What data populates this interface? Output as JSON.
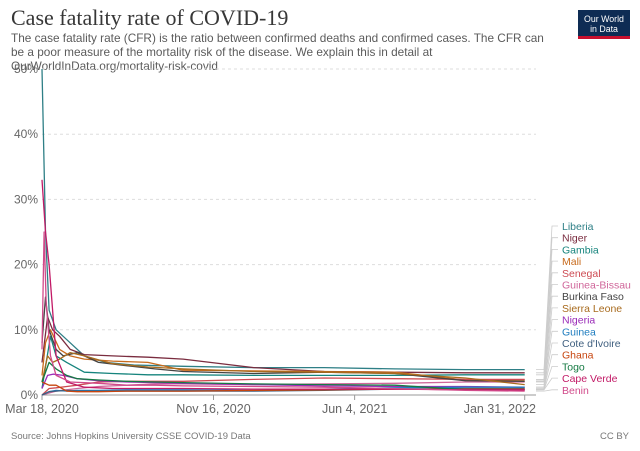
{
  "header": {
    "title": "Case fatality rate of COVID-19",
    "subtitle": "The case fatality rate (CFR) is the ratio between confirmed deaths and confirmed cases. The CFR can be a poor measure of the mortality risk of the disease. We explain this in detail at OurWorldInData.org/mortality-risk-covid",
    "logo_line1": "Our World",
    "logo_line2": "in Data"
  },
  "footer": {
    "source": "Source: Johns Hopkins University CSSE COVID-19 Data",
    "license": "CC BY"
  },
  "chart_data": {
    "type": "line",
    "title": "Case fatality rate of COVID-19",
    "xlabel": "",
    "ylabel": "",
    "xlim": [
      0,
      700
    ],
    "ylim": [
      0,
      50
    ],
    "grid": true,
    "legend_position": "right",
    "x_ticks": [
      {
        "label": "Mar 18, 2020",
        "day": 0
      },
      {
        "label": "Nov 16, 2020",
        "day": 243
      },
      {
        "label": "Jun 4, 2021",
        "day": 443
      },
      {
        "label": "Jan 31, 2022",
        "day": 684
      }
    ],
    "y_ticks": [
      {
        "label": "0%",
        "value": 0
      },
      {
        "label": "10%",
        "value": 10
      },
      {
        "label": "20%",
        "value": 20
      },
      {
        "label": "30%",
        "value": 30
      },
      {
        "label": "40%",
        "value": 40
      },
      {
        "label": "50%",
        "value": 50
      }
    ],
    "series": [
      {
        "name": "Liberia",
        "color": "#2e7f86",
        "x": [
          0,
          5,
          10,
          20,
          40,
          60,
          90,
          130,
          200,
          300,
          400,
          500,
          600,
          684
        ],
        "values": [
          50,
          25,
          13,
          10,
          8,
          6,
          5,
          4.6,
          4.4,
          4.2,
          4.2,
          4,
          3.9,
          3.9
        ]
      },
      {
        "name": "Niger",
        "color": "#7a2c3f",
        "x": [
          0,
          8,
          15,
          25,
          40,
          60,
          100,
          150,
          200,
          300,
          400,
          500,
          600,
          684
        ],
        "values": [
          5,
          12,
          10,
          9,
          7,
          6.2,
          6,
          5.8,
          5.5,
          4.2,
          3.6,
          3.5,
          3.4,
          3.4
        ]
      },
      {
        "name": "Gambia",
        "color": "#16847d",
        "x": [
          0,
          6,
          12,
          20,
          35,
          60,
          100,
          150,
          200,
          300,
          400,
          500,
          600,
          684
        ],
        "values": [
          1,
          5,
          9,
          6,
          5,
          3.5,
          3.3,
          3.1,
          3.1,
          3.0,
          3.0,
          3.0,
          3.1,
          3.1
        ]
      },
      {
        "name": "Mali",
        "color": "#c86b1d",
        "x": [
          0,
          5,
          12,
          25,
          40,
          60,
          100,
          150,
          200,
          300,
          400,
          500,
          600,
          684
        ],
        "values": [
          3,
          8,
          10,
          7,
          6,
          5.5,
          5.2,
          5,
          3.8,
          3.7,
          3.6,
          3.5,
          2.3,
          2.3
        ]
      },
      {
        "name": "Senegal",
        "color": "#cd4a52",
        "x": [
          0,
          10,
          20,
          35,
          50,
          80,
          120,
          160,
          200,
          300,
          400,
          500,
          600,
          684
        ],
        "values": [
          0,
          1,
          1.1,
          1.3,
          1.5,
          2,
          2.1,
          2.1,
          2.1,
          2.4,
          2.6,
          2.5,
          2.4,
          2.4
        ]
      },
      {
        "name": "Guinea-Bissau",
        "color": "#d0669a",
        "x": [
          0,
          10,
          20,
          35,
          50,
          80,
          120,
          160,
          200,
          300,
          400,
          500,
          600,
          684
        ],
        "values": [
          0,
          0.3,
          0.6,
          0.8,
          1,
          1.3,
          1.5,
          1.7,
          1.7,
          1.6,
          1.7,
          1.8,
          2.0,
          2.0
        ]
      },
      {
        "name": "Burkina Faso",
        "color": "#444444",
        "x": [
          0,
          5,
          10,
          20,
          30,
          50,
          80,
          120,
          160,
          200,
          300,
          400,
          500,
          600,
          684
        ],
        "values": [
          8,
          15,
          10,
          7,
          6,
          6.5,
          5,
          4.5,
          4,
          3.6,
          3.3,
          3.5,
          3.3,
          2.2,
          2.1
        ]
      },
      {
        "name": "Sierra Leone",
        "color": "#a86b1e",
        "x": [
          0,
          8,
          15,
          25,
          40,
          60,
          100,
          150,
          200,
          300,
          400,
          500,
          600,
          684
        ],
        "values": [
          2,
          6,
          5,
          5.5,
          6.5,
          6,
          4.8,
          4.3,
          4,
          3.6,
          3.5,
          3.3,
          2.6,
          1.6
        ]
      },
      {
        "name": "Nigeria",
        "color": "#9a2bb8",
        "x": [
          0,
          8,
          16,
          30,
          50,
          80,
          120,
          160,
          200,
          300,
          400,
          500,
          600,
          684
        ],
        "values": [
          1,
          3,
          3.2,
          3,
          2.5,
          2.2,
          2,
          1.9,
          1.8,
          1.6,
          1.4,
          1.3,
          1.3,
          1.2
        ]
      },
      {
        "name": "Guinea",
        "color": "#1f7dbf",
        "x": [
          0,
          10,
          20,
          35,
          50,
          80,
          120,
          160,
          200,
          300,
          400,
          500,
          600,
          684
        ],
        "values": [
          0,
          0.5,
          0.7,
          0.6,
          0.7,
          0.7,
          0.8,
          0.8,
          0.8,
          0.7,
          0.9,
          1.1,
          1.2,
          1.2
        ]
      },
      {
        "name": "Cote d'Ivoire",
        "color": "#3f5f7f",
        "x": [
          0,
          10,
          20,
          35,
          50,
          80,
          120,
          160,
          200,
          300,
          400,
          500,
          600,
          684
        ],
        "values": [
          0,
          0.5,
          0.6,
          0.7,
          0.6,
          0.6,
          0.6,
          0.6,
          0.6,
          0.6,
          0.7,
          0.9,
          1,
          1
        ]
      },
      {
        "name": "Ghana",
        "color": "#c7450f",
        "x": [
          0,
          10,
          20,
          35,
          50,
          80,
          120,
          160,
          200,
          300,
          400,
          500,
          600,
          684
        ],
        "values": [
          2,
          1.5,
          1.5,
          0.6,
          0.5,
          0.5,
          0.6,
          0.6,
          0.6,
          0.7,
          0.8,
          0.9,
          0.9,
          0.9
        ]
      },
      {
        "name": "Togo",
        "color": "#157a43",
        "x": [
          0,
          10,
          20,
          35,
          50,
          80,
          120,
          160,
          200,
          300,
          400,
          500,
          600,
          684
        ],
        "values": [
          2,
          5,
          4,
          3,
          2.5,
          2.3,
          2.1,
          2,
          1.9,
          1.7,
          1.6,
          1.5,
          0.8,
          0.8
        ]
      },
      {
        "name": "Cape Verde",
        "color": "#c21a66",
        "x": [
          0,
          5,
          10,
          20,
          35,
          60,
          100,
          150,
          200,
          300,
          400,
          500,
          600,
          684
        ],
        "values": [
          33,
          25,
          20,
          6,
          2,
          1.2,
          1,
          1,
          1,
          0.9,
          0.9,
          0.9,
          0.8,
          0.8
        ]
      },
      {
        "name": "Benin",
        "color": "#d14a8a",
        "x": [
          0,
          3,
          6,
          12,
          20,
          40,
          80,
          120,
          160,
          200,
          300,
          400,
          500,
          600,
          684
        ],
        "values": [
          7,
          25,
          14,
          6,
          3,
          2,
          1.8,
          1.5,
          1.5,
          1.4,
          1.3,
          1.2,
          1,
          0.7,
          0.6
        ]
      }
    ]
  }
}
